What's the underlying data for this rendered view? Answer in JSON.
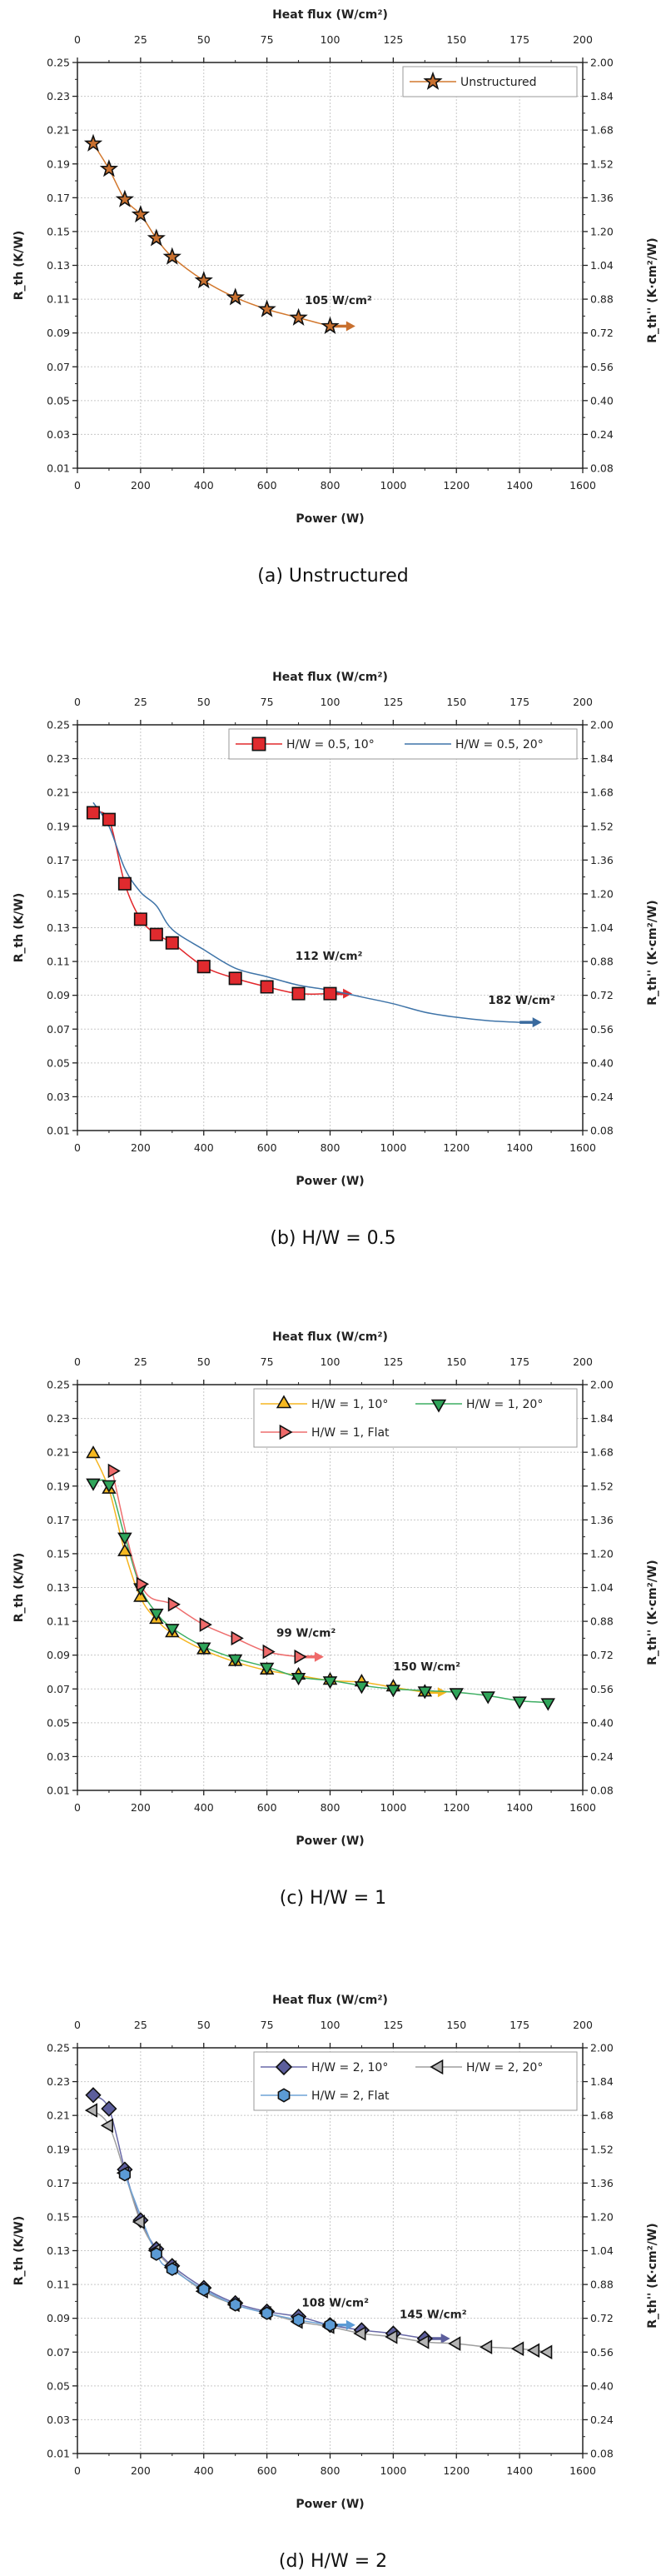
{
  "chart_data": [
    {
      "type": "line",
      "caption": "(a) Unstructured",
      "xlabel": "Power (W)",
      "x2label": "Heat flux (W/cm²)",
      "ylabel": "R_th (K/W)",
      "y2label": "R_th'' (K·cm²/W)",
      "xlim": [
        0,
        1600
      ],
      "x2lim": [
        0,
        200
      ],
      "ylim": [
        0.01,
        0.25
      ],
      "y2lim": [
        0.08,
        2.0
      ],
      "xticks": [
        0,
        200,
        400,
        600,
        800,
        1000,
        1200,
        1400,
        1600
      ],
      "x2ticks": [
        0,
        25,
        50,
        75,
        100,
        125,
        150,
        175,
        200
      ],
      "yticks": [
        "0.01",
        "0.03",
        "0.05",
        "0.07",
        "0.09",
        "0.11",
        "0.13",
        "0.15",
        "0.17",
        "0.19",
        "0.21",
        "0.23",
        "0.25"
      ],
      "y2ticks": [
        "0.08",
        "0.24",
        "0.40",
        "0.56",
        "0.72",
        "0.88",
        "1.04",
        "1.20",
        "1.36",
        "1.52",
        "1.68",
        "1.84",
        "2.00"
      ],
      "grid": true,
      "legend_position": "top-right",
      "annotations": [
        "105 W/cm²"
      ],
      "series": [
        {
          "name": "Unstructured",
          "marker": "star",
          "color": "#D2782E",
          "fill": "#C8702F",
          "x": [
            50,
            100,
            150,
            200,
            250,
            300,
            400,
            500,
            600,
            700,
            800
          ],
          "y": [
            0.202,
            0.187,
            0.169,
            0.16,
            0.146,
            0.135,
            0.121,
            0.111,
            0.104,
            0.099,
            0.094
          ]
        }
      ]
    },
    {
      "type": "line",
      "caption": "(b) H/W = 0.5",
      "xlabel": "Power (W)",
      "x2label": "Heat flux (W/cm²)",
      "ylabel": "R_th (K/W)",
      "y2label": "R_th'' (K·cm²/W)",
      "xlim": [
        0,
        1600
      ],
      "x2lim": [
        0,
        200
      ],
      "ylim": [
        0.01,
        0.25
      ],
      "y2lim": [
        0.08,
        2.0
      ],
      "xticks": [
        0,
        200,
        400,
        600,
        800,
        1000,
        1200,
        1400,
        1600
      ],
      "x2ticks": [
        0,
        25,
        50,
        75,
        100,
        125,
        150,
        175,
        200
      ],
      "yticks": [
        "0.01",
        "0.03",
        "0.05",
        "0.07",
        "0.09",
        "0.11",
        "0.13",
        "0.15",
        "0.17",
        "0.19",
        "0.21",
        "0.23",
        "0.25"
      ],
      "y2ticks": [
        "0.08",
        "0.24",
        "0.40",
        "0.56",
        "0.72",
        "0.88",
        "1.04",
        "1.20",
        "1.36",
        "1.52",
        "1.68",
        "1.84",
        "2.00"
      ],
      "grid": true,
      "legend_position": "top-right",
      "annotations": [
        "112 W/cm²",
        "182 W/cm²"
      ],
      "series": [
        {
          "name": "H/W = 0.5, 10°",
          "marker": "square",
          "color": "#E2282C",
          "fill": "#E02A2E",
          "x": [
            50,
            100,
            150,
            200,
            250,
            300,
            400,
            500,
            600,
            700,
            800
          ],
          "y": [
            0.198,
            0.194,
            0.156,
            0.135,
            0.126,
            0.121,
            0.107,
            0.1,
            0.095,
            0.091,
            0.091
          ]
        },
        {
          "name": "H/W = 0.5, 20°",
          "marker": "circle",
          "color": "#3F74A8",
          "fill": "#3A6A9E",
          "x": [
            50,
            100,
            150,
            200,
            250,
            300,
            400,
            500,
            600,
            700,
            800,
            900,
            1000,
            1100,
            1200,
            1300,
            1400
          ],
          "y": [
            0.204,
            0.19,
            0.165,
            0.151,
            0.143,
            0.129,
            0.117,
            0.106,
            0.101,
            0.096,
            0.093,
            0.089,
            0.085,
            0.08,
            0.077,
            0.075,
            0.074
          ]
        }
      ]
    },
    {
      "type": "line",
      "caption": "(c) H/W = 1",
      "xlabel": "Power (W)",
      "x2label": "Heat flux (W/cm²)",
      "ylabel": "R_th (K/W)",
      "y2label": "R_th'' (K·cm²/W)",
      "xlim": [
        0,
        1600
      ],
      "x2lim": [
        0,
        200
      ],
      "ylim": [
        0.01,
        0.25
      ],
      "y2lim": [
        0.08,
        2.0
      ],
      "xticks": [
        0,
        200,
        400,
        600,
        800,
        1000,
        1200,
        1400,
        1600
      ],
      "x2ticks": [
        0,
        25,
        50,
        75,
        100,
        125,
        150,
        175,
        200
      ],
      "yticks": [
        "0.01",
        "0.03",
        "0.05",
        "0.07",
        "0.09",
        "0.11",
        "0.13",
        "0.15",
        "0.17",
        "0.19",
        "0.21",
        "0.23",
        "0.25"
      ],
      "y2ticks": [
        "0.08",
        "0.24",
        "0.40",
        "0.56",
        "0.72",
        "0.88",
        "1.04",
        "1.20",
        "1.36",
        "1.52",
        "1.68",
        "1.84",
        "2.00"
      ],
      "grid": true,
      "legend_position": "top-right",
      "annotations": [
        "99 W/cm²",
        "150 W/cm²"
      ],
      "series": [
        {
          "name": "H/W = 1, 10°",
          "marker": "triangle-up",
          "color": "#F5B520",
          "fill": "#F5B820",
          "x": [
            50,
            100,
            150,
            200,
            250,
            300,
            400,
            500,
            600,
            700,
            800,
            900,
            1000,
            1100
          ],
          "y": [
            0.209,
            0.188,
            0.151,
            0.124,
            0.111,
            0.103,
            0.093,
            0.086,
            0.081,
            0.078,
            0.075,
            0.074,
            0.071,
            0.068
          ]
        },
        {
          "name": "H/W = 1, 20°",
          "marker": "triangle-down",
          "color": "#3DAE62",
          "fill": "#2FA55A",
          "x": [
            50,
            100,
            150,
            200,
            250,
            300,
            400,
            500,
            600,
            700,
            800,
            900,
            1000,
            1100,
            1200,
            1300,
            1400,
            1490
          ],
          "y": [
            0.192,
            0.191,
            0.16,
            0.13,
            0.115,
            0.106,
            0.095,
            0.088,
            0.083,
            0.077,
            0.075,
            0.072,
            0.07,
            0.069,
            0.068,
            0.066,
            0.063,
            0.062
          ]
        },
        {
          "name": "H/W = 1, Flat",
          "marker": "triangle-right",
          "color": "#EE6E6E",
          "fill": "#EF6A6A",
          "x": [
            110,
            200,
            300,
            400,
            500,
            600,
            700
          ],
          "y": [
            0.199,
            0.132,
            0.12,
            0.108,
            0.1,
            0.092,
            0.089
          ]
        }
      ]
    },
    {
      "type": "line",
      "caption": "(d) H/W = 2",
      "xlabel": "Power (W)",
      "x2label": "Heat flux (W/cm²)",
      "ylabel": "R_th (K/W)",
      "y2label": "R_th'' (K·cm²/W)",
      "xlim": [
        0,
        1600
      ],
      "x2lim": [
        0,
        200
      ],
      "ylim": [
        0.01,
        0.25
      ],
      "y2lim": [
        0.08,
        2.0
      ],
      "xticks": [
        0,
        200,
        400,
        600,
        800,
        1000,
        1200,
        1400,
        1600
      ],
      "x2ticks": [
        0,
        25,
        50,
        75,
        100,
        125,
        150,
        175,
        200
      ],
      "yticks": [
        "0.01",
        "0.03",
        "0.05",
        "0.07",
        "0.09",
        "0.11",
        "0.13",
        "0.15",
        "0.17",
        "0.19",
        "0.21",
        "0.23",
        "0.25"
      ],
      "y2ticks": [
        "0.08",
        "0.24",
        "0.40",
        "0.56",
        "0.72",
        "0.88",
        "1.04",
        "1.20",
        "1.36",
        "1.52",
        "1.68",
        "1.84",
        "2.00"
      ],
      "grid": true,
      "legend_position": "top-right",
      "annotations": [
        "108 W/cm²",
        "145 W/cm²"
      ],
      "series": [
        {
          "name": "H/W = 2, 10°",
          "marker": "diamond",
          "color": "#6A6AA8",
          "fill": "#5C5E9C",
          "x": [
            50,
            100,
            150,
            200,
            250,
            300,
            400,
            500,
            600,
            700,
            800,
            900,
            1000,
            1100
          ],
          "y": [
            0.222,
            0.214,
            0.178,
            0.148,
            0.131,
            0.121,
            0.108,
            0.099,
            0.094,
            0.091,
            0.086,
            0.083,
            0.081,
            0.078
          ]
        },
        {
          "name": "H/W = 2, 20°",
          "marker": "triangle-left",
          "color": "#9E9E9E",
          "fill": "#B4B4B4",
          "x": [
            50,
            100,
            150,
            200,
            250,
            300,
            400,
            500,
            600,
            700,
            800,
            900,
            1000,
            1100,
            1200,
            1300,
            1400,
            1450,
            1490
          ],
          "y": [
            0.213,
            0.204,
            0.176,
            0.147,
            0.13,
            0.12,
            0.106,
            0.098,
            0.093,
            0.088,
            0.085,
            0.081,
            0.079,
            0.076,
            0.075,
            0.073,
            0.072,
            0.071,
            0.07
          ]
        },
        {
          "name": "H/W = 2, Flat",
          "marker": "hexagon",
          "color": "#6FA3D6",
          "fill": "#5B9BD5",
          "x": [
            150,
            250,
            300,
            400,
            500,
            600,
            700,
            800
          ],
          "y": [
            0.175,
            0.128,
            0.119,
            0.107,
            0.098,
            0.093,
            0.089,
            0.086
          ]
        }
      ]
    }
  ]
}
